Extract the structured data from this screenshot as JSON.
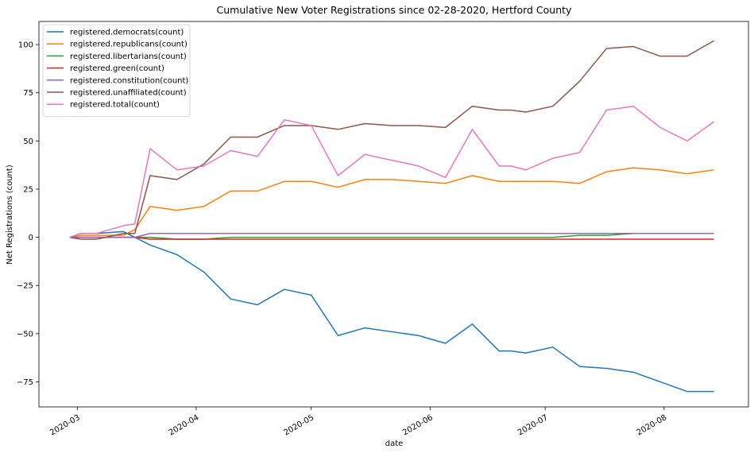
{
  "chart_data": {
    "type": "line",
    "title": "Cumulative New Voter Registrations since 02-28-2020, Hertford County",
    "xlabel": "date",
    "ylabel": "Net Registrations (count)",
    "x_axis_type": "date",
    "xlim": [
      "2020-02-20",
      "2020-08-23"
    ],
    "ylim": [
      -88,
      112
    ],
    "x_ticks": [
      {
        "date": "2020-03-01",
        "label": "2020-03"
      },
      {
        "date": "2020-04-01",
        "label": "2020-04"
      },
      {
        "date": "2020-05-01",
        "label": "2020-05"
      },
      {
        "date": "2020-06-01",
        "label": "2020-06"
      },
      {
        "date": "2020-07-01",
        "label": "2020-07"
      },
      {
        "date": "2020-08-01",
        "label": "2020-08"
      }
    ],
    "y_ticks": [
      {
        "value": 100,
        "label": "100"
      },
      {
        "value": 75,
        "label": "75"
      },
      {
        "value": 50,
        "label": "50"
      },
      {
        "value": 25,
        "label": "25"
      },
      {
        "value": 0,
        "label": "0"
      },
      {
        "value": -25,
        "label": "−25"
      },
      {
        "value": -50,
        "label": "−50"
      },
      {
        "value": -75,
        "label": "−75"
      }
    ],
    "grid": false,
    "legend_position": "upper-left",
    "x": [
      "2020-02-28",
      "2020-03-02",
      "2020-03-06",
      "2020-03-13",
      "2020-03-16",
      "2020-03-20",
      "2020-03-27",
      "2020-04-03",
      "2020-04-10",
      "2020-04-17",
      "2020-04-24",
      "2020-05-01",
      "2020-05-08",
      "2020-05-15",
      "2020-05-22",
      "2020-05-29",
      "2020-06-05",
      "2020-06-12",
      "2020-06-19",
      "2020-06-22",
      "2020-06-26",
      "2020-07-03",
      "2020-07-10",
      "2020-07-17",
      "2020-07-24",
      "2020-07-31",
      "2020-08-07",
      "2020-08-14"
    ],
    "series": [
      {
        "name": "registered.democrats(count)",
        "color": "#1f77b4",
        "values": [
          0,
          2,
          2,
          3,
          0,
          -4,
          -9,
          -18,
          -32,
          -35,
          -27,
          -30,
          -51,
          -47,
          -49,
          -51,
          -55,
          -45,
          -59,
          -59,
          -60,
          -57,
          -67,
          -68,
          -70,
          -75,
          -80,
          -80
        ]
      },
      {
        "name": "registered.republicans(count)",
        "color": "#ff7f0e",
        "values": [
          0,
          1,
          1,
          1,
          4,
          16,
          14,
          16,
          24,
          24,
          29,
          29,
          26,
          30,
          30,
          29,
          28,
          32,
          29,
          29,
          29,
          29,
          28,
          34,
          36,
          35,
          33,
          35
        ]
      },
      {
        "name": "registered.libertarians(count)",
        "color": "#2ca02c",
        "values": [
          0,
          0,
          0,
          0,
          0,
          0,
          -1,
          -1,
          0,
          0,
          0,
          0,
          0,
          0,
          0,
          0,
          0,
          0,
          0,
          0,
          0,
          0,
          1,
          1,
          2,
          2,
          2,
          2
        ]
      },
      {
        "name": "registered.green(count)",
        "color": "#d62728",
        "values": [
          0,
          0,
          0,
          0,
          0,
          -1,
          -1,
          -1,
          -1,
          -1,
          -1,
          -1,
          -1,
          -1,
          -1,
          -1,
          -1,
          -1,
          -1,
          -1,
          -1,
          -1,
          -1,
          -1,
          -1,
          -1,
          -1,
          -1
        ]
      },
      {
        "name": "registered.constitution(count)",
        "color": "#9467bd",
        "values": [
          0,
          0,
          0,
          0,
          0,
          2,
          2,
          2,
          2,
          2,
          2,
          2,
          2,
          2,
          2,
          2,
          2,
          2,
          2,
          2,
          2,
          2,
          2,
          2,
          2,
          2,
          2,
          2
        ]
      },
      {
        "name": "registered.unaffiliated(count)",
        "color": "#8c564b",
        "values": [
          0,
          -1,
          -1,
          2,
          2,
          32,
          30,
          38,
          52,
          52,
          58,
          58,
          56,
          59,
          58,
          58,
          57,
          68,
          66,
          66,
          65,
          68,
          81,
          98,
          99,
          94,
          94,
          102
        ]
      },
      {
        "name": "registered.total(count)",
        "color": "#e377c2",
        "values": [
          0,
          2,
          2,
          6,
          7,
          46,
          35,
          37,
          45,
          42,
          61,
          58,
          32,
          43,
          40,
          37,
          31,
          56,
          37,
          37,
          35,
          41,
          44,
          66,
          68,
          57,
          50,
          60
        ]
      }
    ]
  }
}
